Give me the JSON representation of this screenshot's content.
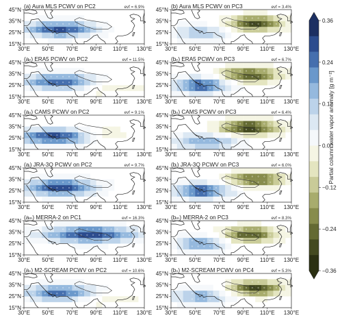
{
  "colorbar": {
    "label": "Partial column water vapor anomaly [g m⁻²]",
    "ticks": [
      "0.36",
      "0.24",
      "0.12",
      "0.00",
      "−0.12",
      "−0.24",
      "−0.36"
    ],
    "tick_values": [
      0.36,
      0.24,
      0.12,
      0.0,
      -0.12,
      -0.24,
      -0.36
    ],
    "positive_colors": [
      "#f5f8fb",
      "#dce8f3",
      "#bcd3ea",
      "#95b9de",
      "#6a98cb",
      "#456fae",
      "#2c4c8e",
      "#1c2f62"
    ],
    "negative_colors": [
      "#f5f5e4",
      "#e4e5c0",
      "#c9cb98",
      "#a8ac6d",
      "#878c4c",
      "#646a33",
      "#444a20",
      "#2b3012"
    ]
  },
  "axes": {
    "x_ticks": [
      "30°E",
      "50°E",
      "70°E",
      "90°E",
      "110°E",
      "130°E"
    ],
    "y_ticks": [
      "45°N",
      "35°N",
      "25°N",
      "15°N"
    ]
  },
  "chart_data": [
    {
      "type": "heatmap",
      "column": "left",
      "row": 0,
      "title": "(a) Aura MLS PCWV on PC2",
      "evf": "evf = 6.9%",
      "pattern": {
        "pos": [
          60,
          28,
          30
        ],
        "neg": [
          115,
          32,
          0
        ],
        "negAmp": 0.0,
        "posAmp": 0.31
      }
    },
    {
      "type": "heatmap",
      "column": "left",
      "row": 1,
      "title": "(aₑ) ERA5 PCWV on PC2",
      "evf": "evf = 11.5%",
      "pattern": {
        "pos": [
          60,
          28,
          30
        ],
        "neg": [
          105,
          22,
          28
        ],
        "negAmp": 0.08,
        "posAmp": 0.3
      }
    },
    {
      "type": "heatmap",
      "column": "left",
      "row": 2,
      "title": "(aₒ) CAMS PCWV on PC2",
      "evf": "evf = 9.1%",
      "pattern": {
        "pos": [
          55,
          26,
          30
        ],
        "neg": [
          100,
          28,
          15
        ],
        "negAmp": 0.1,
        "posAmp": 0.32
      }
    },
    {
      "type": "heatmap",
      "column": "left",
      "row": 3,
      "title": "(aⱼ) JRA-3Q PCWV on PC2",
      "evf": "evf = 9.7%",
      "pattern": {
        "pos": [
          60,
          28,
          30
        ],
        "neg": [
          110,
          25,
          0
        ],
        "negAmp": 0.0,
        "posAmp": 0.34
      }
    },
    {
      "type": "heatmap",
      "column": "left",
      "row": 4,
      "title": "(aₘ) MERRA-2 on PC1",
      "evf": "evf = 16.3%",
      "pattern": {
        "pos": [
          85,
          33,
          40
        ],
        "neg": [
          100,
          20,
          0
        ],
        "negAmp": 0.0,
        "posAmp": 0.33
      }
    },
    {
      "type": "heatmap",
      "column": "left",
      "row": 5,
      "title": "(aₛ) M2-SCREAM PCWV on PC2",
      "evf": "evf = 10.6%",
      "pattern": {
        "pos": [
          60,
          28,
          30
        ],
        "neg": [
          100,
          22,
          28
        ],
        "negAmp": 0.08,
        "posAmp": 0.28
      }
    },
    {
      "type": "heatmap",
      "column": "right",
      "row": 0,
      "title": "(b) Aura MLS PCWV on PC3",
      "evf": "evf = 3.4%",
      "pattern": {
        "pos": [
          55,
          25,
          25
        ],
        "neg": [
          100,
          33,
          22
        ],
        "negAmp": 0.33,
        "posAmp": 0.16
      }
    },
    {
      "type": "heatmap",
      "column": "right",
      "row": 1,
      "title": "(bₑ) ERA5 PCWV on PC3",
      "evf": "evf = 6.7%",
      "pattern": {
        "pos": [
          55,
          25,
          25
        ],
        "neg": [
          95,
          34,
          24
        ],
        "negAmp": 0.3,
        "posAmp": 0.3
      }
    },
    {
      "type": "heatmap",
      "column": "right",
      "row": 2,
      "title": "(bₒ) CAMS PCWV on PC3",
      "evf": "evf = 6.4%",
      "pattern": {
        "pos": [
          60,
          22,
          30
        ],
        "neg": [
          95,
          34,
          24
        ],
        "negAmp": 0.35,
        "posAmp": 0.2
      }
    },
    {
      "type": "heatmap",
      "column": "right",
      "row": 3,
      "title": "(bⱼ) JRA-3Q PCWV on PC3",
      "evf": "evf = 6.0%",
      "pattern": {
        "pos": [
          55,
          25,
          25
        ],
        "neg": [
          100,
          35,
          22
        ],
        "negAmp": 0.28,
        "posAmp": 0.3
      }
    },
    {
      "type": "heatmap",
      "column": "right",
      "row": 4,
      "title": "(bₘ) MERRA-2 on PC3",
      "evf": "evf = 8.3%",
      "pattern": {
        "pos": [
          55,
          25,
          20
        ],
        "neg": [
          95,
          33,
          22
        ],
        "negAmp": 0.3,
        "posAmp": 0.22
      }
    },
    {
      "type": "heatmap",
      "column": "right",
      "row": 5,
      "title": "(bₛ) M2-SCREAM PCWV on PC4",
      "evf": "evf = 5.3%",
      "pattern": {
        "pos": [
          55,
          25,
          25
        ],
        "neg": [
          100,
          32,
          22
        ],
        "negAmp": 0.32,
        "posAmp": 0.2
      }
    }
  ]
}
